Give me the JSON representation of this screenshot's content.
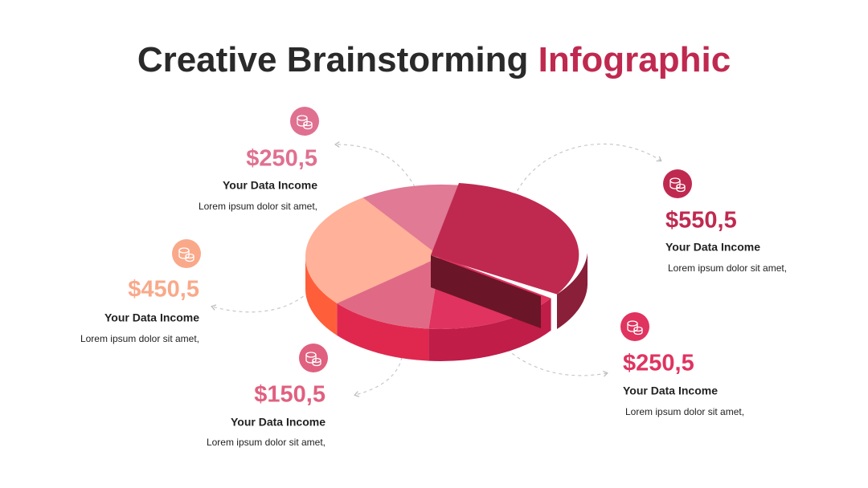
{
  "title": {
    "main": "Creative Brainstorming",
    "highlight": "Infographic"
  },
  "items": [
    {
      "value": "$250,5",
      "label": "Your Data Income",
      "text": "Lorem ipsum dolor sit amet,",
      "color": "#e07090"
    },
    {
      "value": "$450,5",
      "label": "Your Data Income",
      "text": "Lorem ipsum dolor sit amet,",
      "color": "#f9a98a"
    },
    {
      "value": "$150,5",
      "label": "Your Data Income",
      "text": "Lorem ipsum dolor sit amet,",
      "color": "#e0607f"
    },
    {
      "value": "$550,5",
      "label": "Your Data Income",
      "text": "Lorem ipsum dolor sit amet,",
      "color": "#c0294f"
    },
    {
      "value": "$250,5",
      "label": "Your Data Income",
      "text": "Lorem ipsum dolor sit amet,",
      "color": "#e0335f"
    }
  ]
}
